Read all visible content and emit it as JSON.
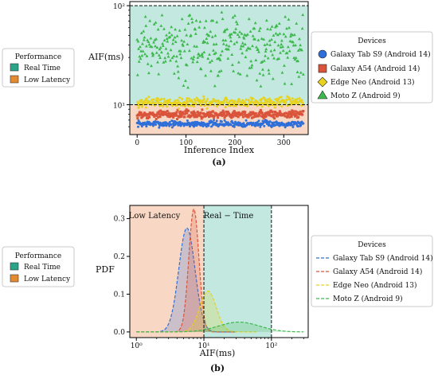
{
  "figure": {
    "caption_a": "(a)",
    "caption_b": "(b)"
  },
  "colors": {
    "galaxy_tab_s9": "#2f6fd9",
    "galaxy_a54": "#d9543b",
    "edge_neo": "#e8d21c",
    "moto_z": "#3db84d",
    "real_time_band": "#8fd5c4",
    "low_latency_band": "#f3b894"
  },
  "chart_data": [
    {
      "type": "scatter",
      "panel": "(a)",
      "title": "",
      "xlabel": "Inference Index",
      "ylabel": "AIF(ms)",
      "yscale": "log",
      "xlim": [
        -15,
        350
      ],
      "ylim": [
        5.0,
        110
      ],
      "x_ticks": [
        0,
        100,
        200,
        300
      ],
      "x_tick_labels": [
        "0",
        "100",
        "200",
        "300"
      ],
      "y_ticks": [
        10,
        100
      ],
      "y_tick_labels": [
        "10¹",
        "10²"
      ],
      "reference_lines": [
        10,
        100
      ],
      "bands": [
        {
          "name": "Real Time",
          "from": 10,
          "to": 100,
          "color": "#8fd5c4"
        },
        {
          "name": "Low Latency",
          "from": 5.0,
          "to": 10,
          "color": "#f3b894"
        }
      ],
      "performance_legend": {
        "title": "Performance",
        "entries": [
          "Real Time",
          "Low Latency"
        ]
      },
      "legend_title": "Devices",
      "x": "0 to 340 (one point per inference index)",
      "series": [
        {
          "name": "Galaxy Tab S9 (Android 14)",
          "marker": "circle",
          "color": "#2f6fd9",
          "y_range": [
            5.8,
            7.2
          ],
          "typical_y": 6.4
        },
        {
          "name": "Galaxy A54 (Android 14)",
          "marker": "square",
          "color": "#d9543b",
          "y_range": [
            7.0,
            9.2
          ],
          "typical_y": 8.0
        },
        {
          "name": "Edge Neo (Android 13)",
          "marker": "diamond",
          "color": "#e8d21c",
          "y_range": [
            9.0,
            12.5
          ],
          "typical_y": 10.5
        },
        {
          "name": "Moto Z (Android 9)",
          "marker": "triangle",
          "color": "#3db84d",
          "y_range": [
            14,
            90
          ],
          "typical_y": 33
        }
      ]
    },
    {
      "type": "line",
      "panel": "(b)",
      "title": "",
      "xlabel": "AIF(ms)",
      "ylabel": "PDF",
      "xscale": "log",
      "xlim": [
        0.8,
        350
      ],
      "ylim": [
        -0.015,
        0.335
      ],
      "x_ticks": [
        1,
        10,
        100
      ],
      "x_tick_labels": [
        "10⁰",
        "10¹",
        "10²"
      ],
      "y_ticks": [
        0.0,
        0.1,
        0.2,
        0.3
      ],
      "y_tick_labels": [
        "0.0",
        "0.1",
        "0.2",
        "0.3"
      ],
      "reference_lines": [
        10,
        100
      ],
      "bands": [
        {
          "name": "Low Latency",
          "from": 0.8,
          "to": 10,
          "color": "#f3b894",
          "label": "Low Latency"
        },
        {
          "name": "Real Time",
          "from": 10,
          "to": 100,
          "color": "#8fd5c4",
          "label": "Real − Time"
        }
      ],
      "performance_legend": {
        "title": "Performance",
        "entries": [
          "Real Time",
          "Low Latency"
        ]
      },
      "legend_title": "Devices",
      "series": [
        {
          "name": "Galaxy Tab S9 (Android 14)",
          "color": "#2f6fd9",
          "peak_x": 5.6,
          "peak_y": 0.275,
          "spread_log10": 0.12,
          "x_range": [
            1,
            30
          ]
        },
        {
          "name": "Galaxy A54 (Android 14)",
          "color": "#d9543b",
          "peak_x": 7.1,
          "peak_y": 0.325,
          "spread_log10": 0.075,
          "x_range": [
            1,
            30
          ]
        },
        {
          "name": "Edge Neo (Android 13)",
          "color": "#e8d21c",
          "peak_x": 11.5,
          "peak_y": 0.108,
          "spread_log10": 0.12,
          "x_range": [
            1,
            60
          ]
        },
        {
          "name": "Moto Z (Android 9)",
          "color": "#3db84d",
          "peak_x": 33,
          "peak_y": 0.026,
          "spread_log10": 0.3,
          "x_range": [
            1,
            300
          ]
        }
      ]
    }
  ]
}
